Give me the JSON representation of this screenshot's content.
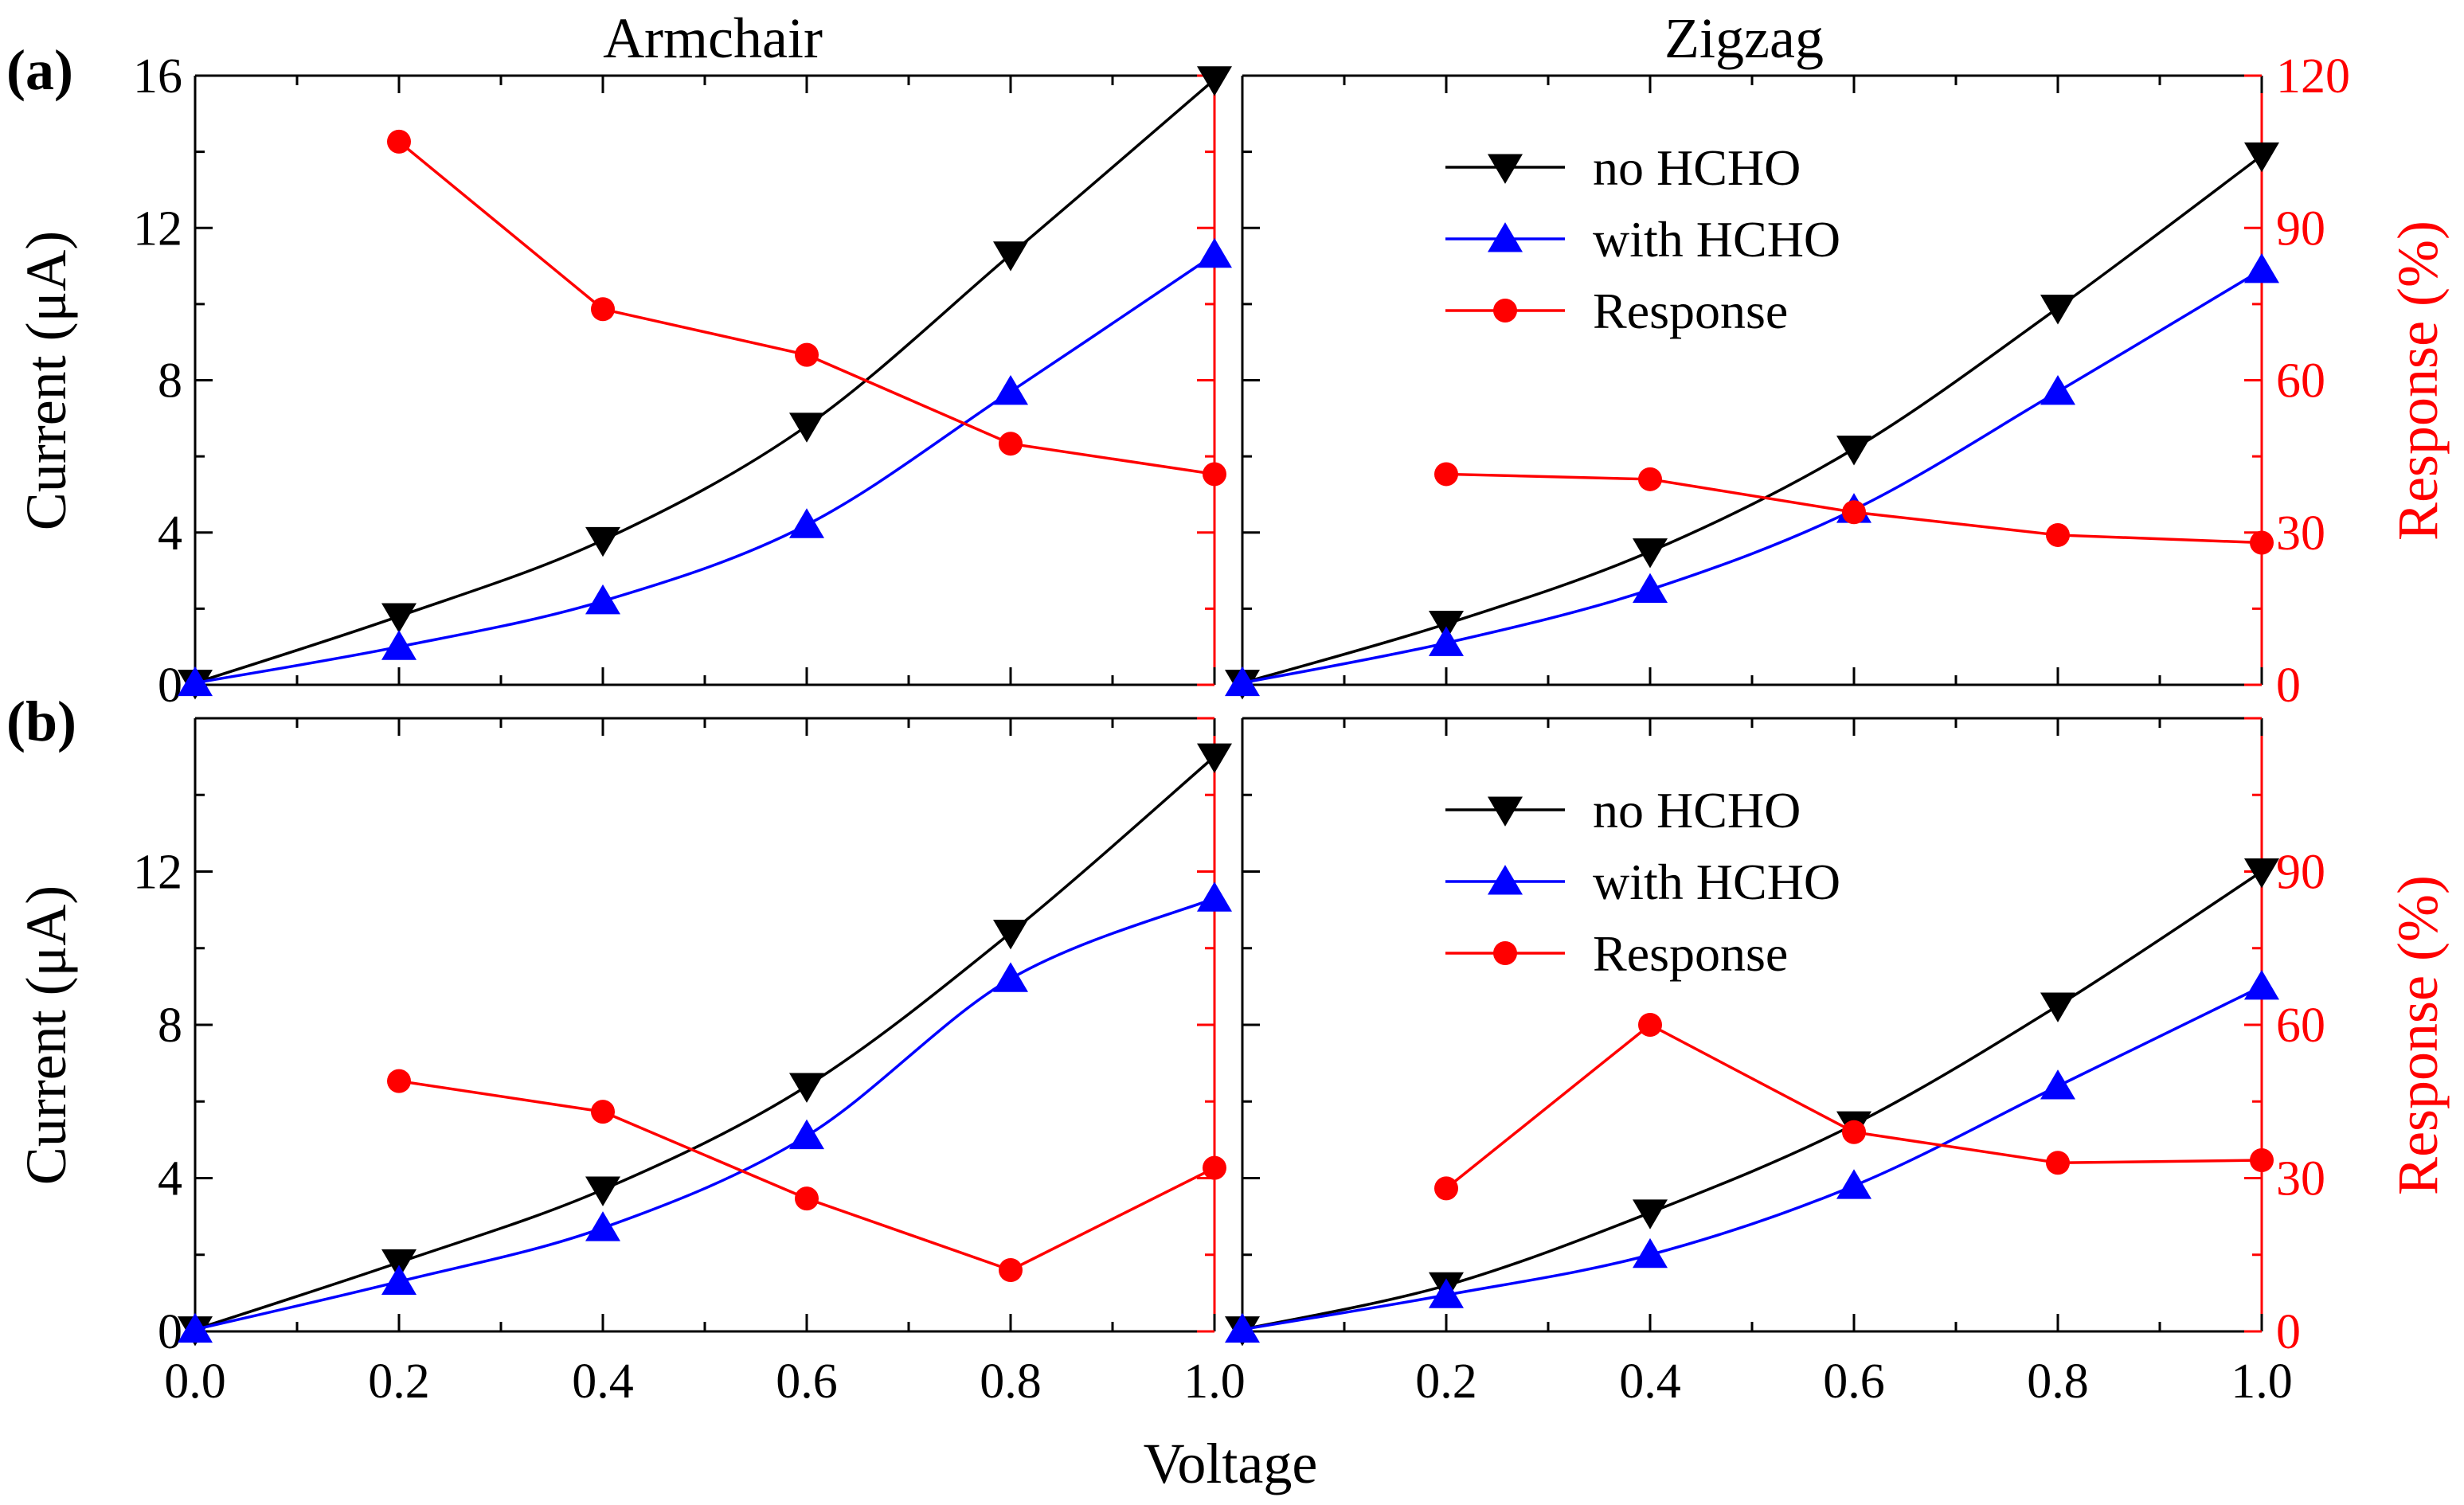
{
  "figure": {
    "column_titles": [
      "Armchair",
      "Zigzag"
    ],
    "row_labels": [
      "(a)",
      "(b)"
    ],
    "x_axis_title": "Voltage",
    "left_axis_title": "Current (μA)",
    "right_axis_title": "Response (%)",
    "colors": {
      "no_hcho": "#000000",
      "with_hcho": "#0000ff",
      "response": "#ff0000",
      "frame": "#000000",
      "right_axis": "#ff0000"
    }
  },
  "legend": {
    "items": [
      {
        "label": "no HCHO",
        "marker": "down-triangle",
        "color": "#000000"
      },
      {
        "label": "with HCHO",
        "marker": "up-triangle",
        "color": "#0000ff"
      },
      {
        "label": "Response",
        "marker": "circle",
        "color": "#ff0000"
      }
    ]
  },
  "chart_data": [
    {
      "id": "a-armchair",
      "row": "a",
      "column": "Armchair",
      "type": "line",
      "x": [
        0.0,
        0.2,
        0.4,
        0.6,
        0.8,
        1.0
      ],
      "xlim": [
        0.0,
        1.0
      ],
      "ylim": [
        0,
        16
      ],
      "y2lim": [
        0,
        120
      ],
      "yticks": [
        0,
        4,
        8,
        12,
        16
      ],
      "y2ticks": [],
      "series": [
        {
          "name": "no HCHO",
          "axis": "left",
          "x": [
            0.0,
            0.2,
            0.4,
            0.6,
            0.8,
            1.0
          ],
          "values": [
            0.05,
            1.8,
            3.8,
            6.8,
            11.3,
            15.9
          ]
        },
        {
          "name": "with HCHO",
          "axis": "left",
          "x": [
            0.0,
            0.2,
            0.4,
            0.6,
            0.8,
            1.0
          ],
          "values": [
            0.05,
            1.0,
            2.2,
            4.2,
            7.7,
            11.3
          ]
        },
        {
          "name": "Response",
          "axis": "right",
          "x": [
            0.2,
            0.4,
            0.6,
            0.8,
            1.0
          ],
          "values": [
            107,
            74,
            65,
            47.5,
            41.5
          ]
        }
      ]
    },
    {
      "id": "a-zigzag",
      "row": "a",
      "column": "Zigzag",
      "type": "line",
      "x": [
        0.0,
        0.2,
        0.4,
        0.6,
        0.8,
        1.0
      ],
      "xlim": [
        0.0,
        1.0
      ],
      "ylim": [
        0,
        16
      ],
      "y2lim": [
        0,
        120
      ],
      "yticks": [],
      "y2ticks": [
        0,
        30,
        60,
        90,
        120
      ],
      "series": [
        {
          "name": "no HCHO",
          "axis": "left",
          "x": [
            0.0,
            0.2,
            0.4,
            0.6,
            0.8,
            1.0
          ],
          "values": [
            0.05,
            1.6,
            3.5,
            6.2,
            9.9,
            13.9
          ]
        },
        {
          "name": "with HCHO",
          "axis": "left",
          "x": [
            0.0,
            0.2,
            0.4,
            0.6,
            0.8,
            1.0
          ],
          "values": [
            0.05,
            1.1,
            2.5,
            4.6,
            7.7,
            10.9
          ]
        },
        {
          "name": "Response",
          "axis": "right",
          "x": [
            0.2,
            0.4,
            0.6,
            0.8,
            1.0
          ],
          "values": [
            41.5,
            40.5,
            34,
            29.5,
            28
          ]
        }
      ]
    },
    {
      "id": "b-armchair",
      "row": "b",
      "column": "Armchair",
      "type": "line",
      "x": [
        0.0,
        0.2,
        0.4,
        0.6,
        0.8,
        1.0
      ],
      "xlim": [
        0.0,
        1.0
      ],
      "ylim": [
        0,
        16
      ],
      "y2lim": [
        0,
        120
      ],
      "yticks": [
        0,
        4,
        8,
        12
      ],
      "y2ticks": [],
      "series": [
        {
          "name": "no HCHO",
          "axis": "left",
          "x": [
            0.0,
            0.2,
            0.4,
            0.6,
            0.8,
            1.0
          ],
          "values": [
            0.05,
            1.8,
            3.7,
            6.4,
            10.4,
            15.0
          ]
        },
        {
          "name": "with HCHO",
          "axis": "left",
          "x": [
            0.0,
            0.2,
            0.4,
            0.6,
            0.8,
            1.0
          ],
          "values": [
            0.05,
            1.3,
            2.7,
            5.1,
            9.2,
            11.3
          ]
        },
        {
          "name": "Response",
          "axis": "right",
          "x": [
            0.2,
            0.4,
            0.6,
            0.8,
            1.0
          ],
          "values": [
            49,
            43,
            26,
            12,
            32
          ]
        }
      ]
    },
    {
      "id": "b-zigzag",
      "row": "b",
      "column": "Zigzag",
      "type": "line",
      "x": [
        0.0,
        0.2,
        0.4,
        0.6,
        0.8,
        1.0
      ],
      "xlim": [
        0.0,
        1.0
      ],
      "ylim": [
        0,
        16
      ],
      "y2lim": [
        0,
        120
      ],
      "yticks": [],
      "y2ticks": [
        0,
        30,
        60,
        90
      ],
      "series": [
        {
          "name": "no HCHO",
          "axis": "left",
          "x": [
            0.0,
            0.2,
            0.4,
            0.6,
            0.8,
            1.0
          ],
          "values": [
            0.05,
            1.2,
            3.1,
            5.4,
            8.5,
            12.0
          ]
        },
        {
          "name": "with HCHO",
          "axis": "left",
          "x": [
            0.0,
            0.2,
            0.4,
            0.6,
            0.8,
            1.0
          ],
          "values": [
            0.05,
            0.95,
            2.0,
            3.8,
            6.4,
            9.0
          ]
        },
        {
          "name": "Response",
          "axis": "right",
          "x": [
            0.2,
            0.4,
            0.6,
            0.8,
            1.0
          ],
          "values": [
            28,
            60,
            39,
            33,
            33.5
          ]
        }
      ]
    }
  ],
  "x_tick_labels": {
    "armchair": [
      "0.0",
      "0.2",
      "0.4",
      "0.6",
      "0.8",
      "1.0"
    ],
    "zigzag": [
      "0.2",
      "0.4",
      "0.6",
      "0.8",
      "1.0"
    ]
  }
}
